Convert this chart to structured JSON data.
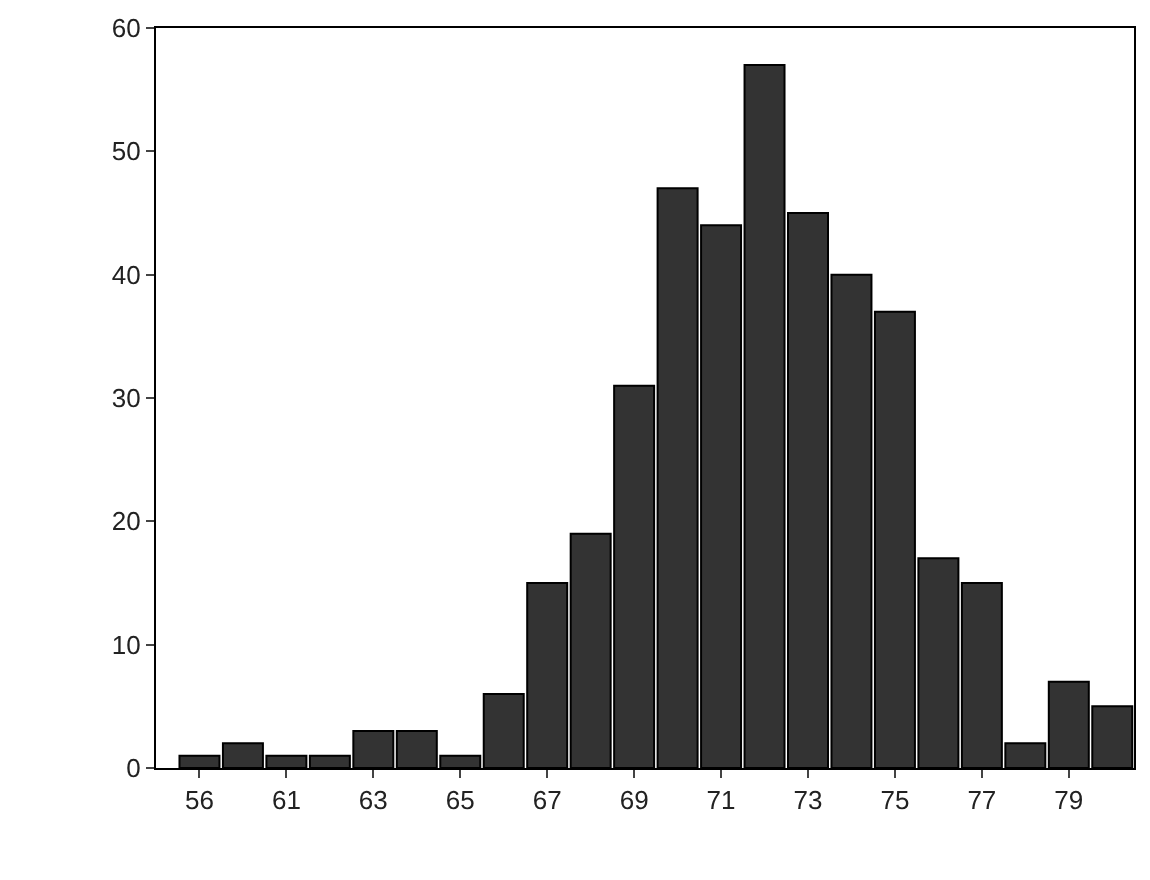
{
  "chart_data": {
    "type": "bar",
    "categories": [
      "56",
      null,
      "61",
      null,
      "63",
      null,
      "65",
      null,
      "67",
      null,
      "69",
      null,
      "71",
      null,
      "73",
      null,
      "75",
      null,
      "77",
      null,
      "79",
      null
    ],
    "values": [
      1,
      2,
      1,
      1,
      3,
      3,
      1,
      6,
      15,
      19,
      31,
      47,
      44,
      57,
      45,
      40,
      37,
      17,
      15,
      2,
      7,
      5
    ],
    "color": "#333333",
    "ylim": [
      0,
      60
    ],
    "yticks": [
      0,
      10,
      20,
      30,
      40,
      50,
      60
    ],
    "legend": false
  }
}
